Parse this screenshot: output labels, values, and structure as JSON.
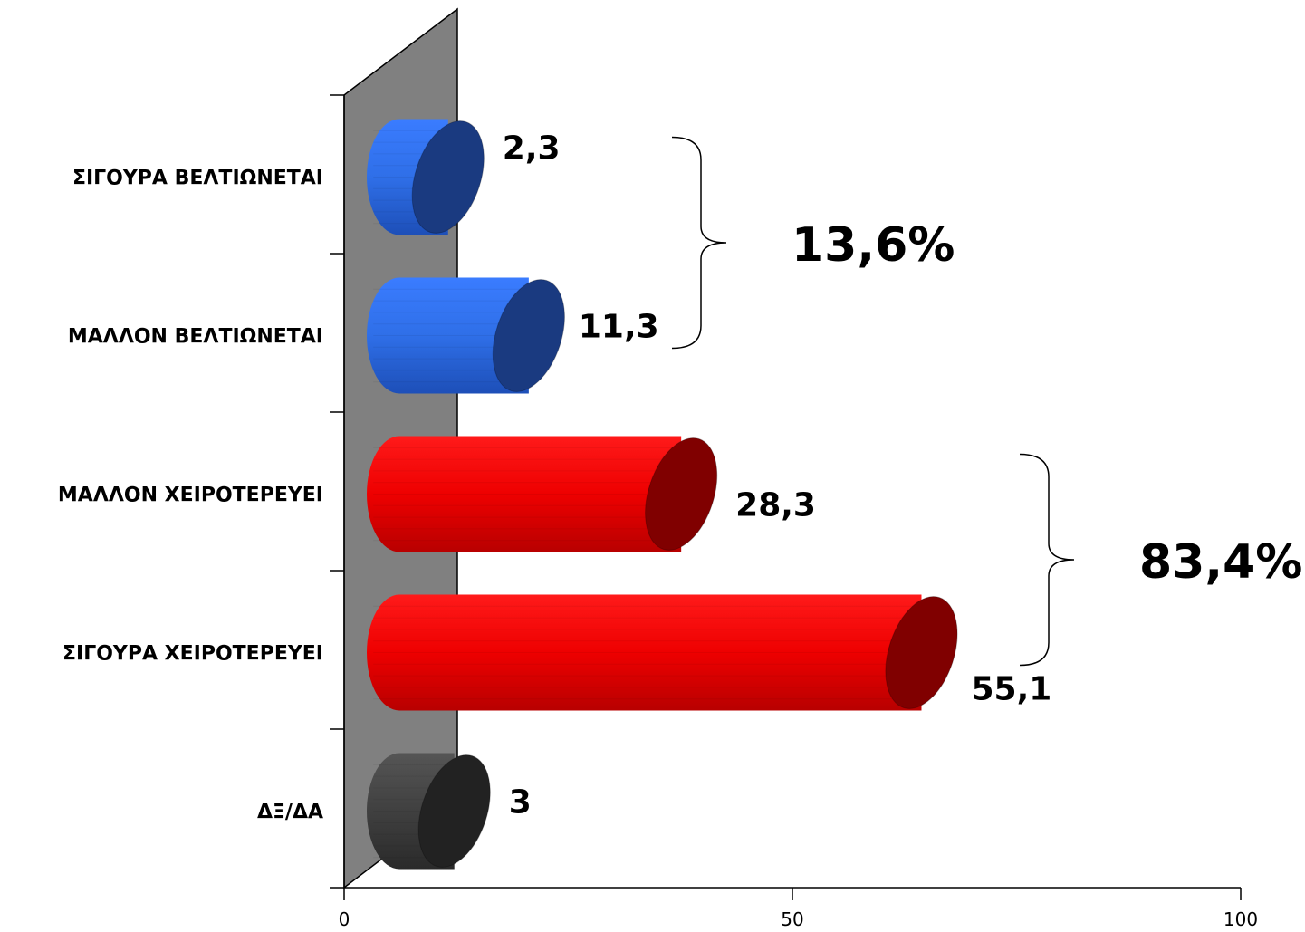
{
  "chart_data": {
    "type": "bar",
    "orientation": "horizontal",
    "style": "3d-cylinder",
    "categories": [
      "ΣΙΓΟΥΡΑ ΒΕΛΤΙΩΝΕΤΑΙ",
      "ΜΑΛΛΟΝ ΒΕΛΤΙΩΝΕΤΑΙ",
      "ΜΑΛΛΟΝ ΧΕΙΡΟΤΕΡΕΥΕΙ",
      "ΣΙΓΟΥΡΑ ΧΕΙΡΟΤΕΡΕΥΕΙ",
      "ΔΞ/ΔΑ"
    ],
    "values": [
      2.3,
      11.3,
      28.3,
      55.1,
      3
    ],
    "value_labels": [
      "2,3",
      "11,3",
      "28,3",
      "55,1",
      "3"
    ],
    "colors": [
      "#2f6fe8",
      "#2f6fe8",
      "#e00000",
      "#e00000",
      "#3a3a3a"
    ],
    "end_colors": [
      "#1a3a80",
      "#1a3a80",
      "#800000",
      "#800000",
      "#222222"
    ],
    "xlim": [
      0,
      100
    ],
    "xticks": [
      "0",
      "50",
      "100"
    ],
    "xlabel": "",
    "ylabel": "",
    "title": "",
    "grid": false,
    "wall_color": "#808080",
    "annotations": [
      {
        "text": "13,6%",
        "groups": [
          0,
          1
        ]
      },
      {
        "text": "83,4%",
        "groups": [
          2,
          3
        ]
      }
    ]
  }
}
